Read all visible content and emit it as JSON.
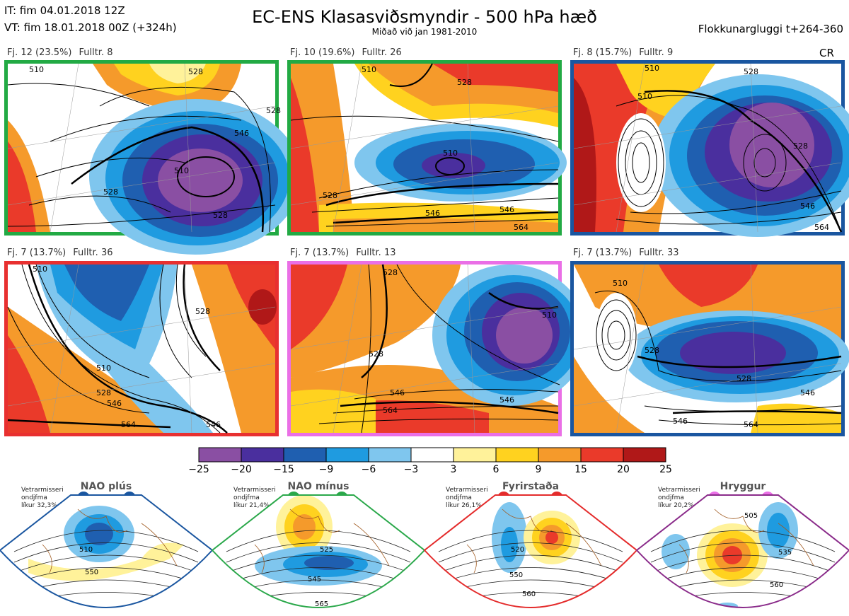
{
  "header": {
    "init_time": "IT: fim 04.01.2018 12Z",
    "valid_time": "VT: fim 18.01.2018 00Z  (+324h)",
    "title": "EC-ENS Klasasviðsmyndir - 500 hPa hæð",
    "subtitle": "Miðað við jan 1981-2010",
    "window": "Flokkunargluggi t+264-360",
    "cr": "CR"
  },
  "panels": [
    {
      "cluster": "Fj. 12 (23.5%)",
      "rep": "Fulltr. 8",
      "border": "#22aa44"
    },
    {
      "cluster": "Fj. 10 (19.6%)",
      "rep": "Fulltr. 26",
      "border": "#22aa44"
    },
    {
      "cluster": "Fj. 8 (15.7%)",
      "rep": "Fulltr. 9",
      "border": "#1a56a0"
    },
    {
      "cluster": "Fj. 7 (13.7%)",
      "rep": "Fulltr. 36",
      "border": "#e83030"
    },
    {
      "cluster": "Fj. 7 (13.7%)",
      "rep": "Fulltr. 13",
      "border": "#ea6fe6"
    },
    {
      "cluster": "Fj. 7 (13.7%)",
      "rep": "Fulltr. 33",
      "border": "#1a56a0"
    }
  ],
  "contour_labels": {
    "p0": [
      "510",
      "528",
      "528",
      "510",
      "528",
      "546",
      "528"
    ],
    "p1": [
      "510",
      "528",
      "510",
      "528",
      "546",
      "546",
      "564"
    ],
    "p2": [
      "510",
      "528",
      "510",
      "546",
      "528",
      "564"
    ],
    "p3": [
      "510",
      "528",
      "510",
      "546",
      "528",
      "564",
      "546"
    ],
    "p4": [
      "528",
      "510",
      "528",
      "546",
      "564",
      "546"
    ],
    "p5": [
      "510",
      "528",
      "546",
      "546",
      "528",
      "564"
    ]
  },
  "colorbar": {
    "ticks": [
      "−25",
      "−20",
      "−15",
      "−9",
      "−6",
      "−3",
      "3",
      "6",
      "9",
      "15",
      "20",
      "25"
    ],
    "colors": [
      "#8a4fa3",
      "#4a2f9e",
      "#1f5fb0",
      "#1f9be0",
      "#7fc6ee",
      "#ffffff",
      "#fff29a",
      "#ffd21f",
      "#f59a2b",
      "#ea3a2a",
      "#b01818"
    ]
  },
  "regimes": [
    {
      "name": "NAO plús",
      "note": [
        "Vetrarmisseri",
        "ondjfma",
        "líkur 32,3%"
      ],
      "dot_color": "#1a56a0",
      "frame": "#1a56a0",
      "labels": [
        "510",
        "550"
      ]
    },
    {
      "name": "NAO mínus",
      "note": [
        "Vetrarmisseri",
        "ondjfma",
        "líkur 21,4%"
      ],
      "dot_color": "#2aa84a",
      "frame": "#2aa84a",
      "labels": [
        "525",
        "545",
        "565"
      ]
    },
    {
      "name": "Fyrirstaða",
      "note": [
        "Vetrarmisseri",
        "ondjfma",
        "líkur 26,1%"
      ],
      "dot_color": "#e42b2b",
      "frame": "#e42b2b",
      "labels": [
        "520",
        "550",
        "560"
      ]
    },
    {
      "name": "Hryggur",
      "note": [
        "Vetrarmisseri",
        "ondjfma",
        "líkur 20,2%"
      ],
      "dot_color": "#ea6fe6",
      "frame": "#8a2b8a",
      "labels": [
        "505",
        "535",
        "560"
      ]
    }
  ]
}
